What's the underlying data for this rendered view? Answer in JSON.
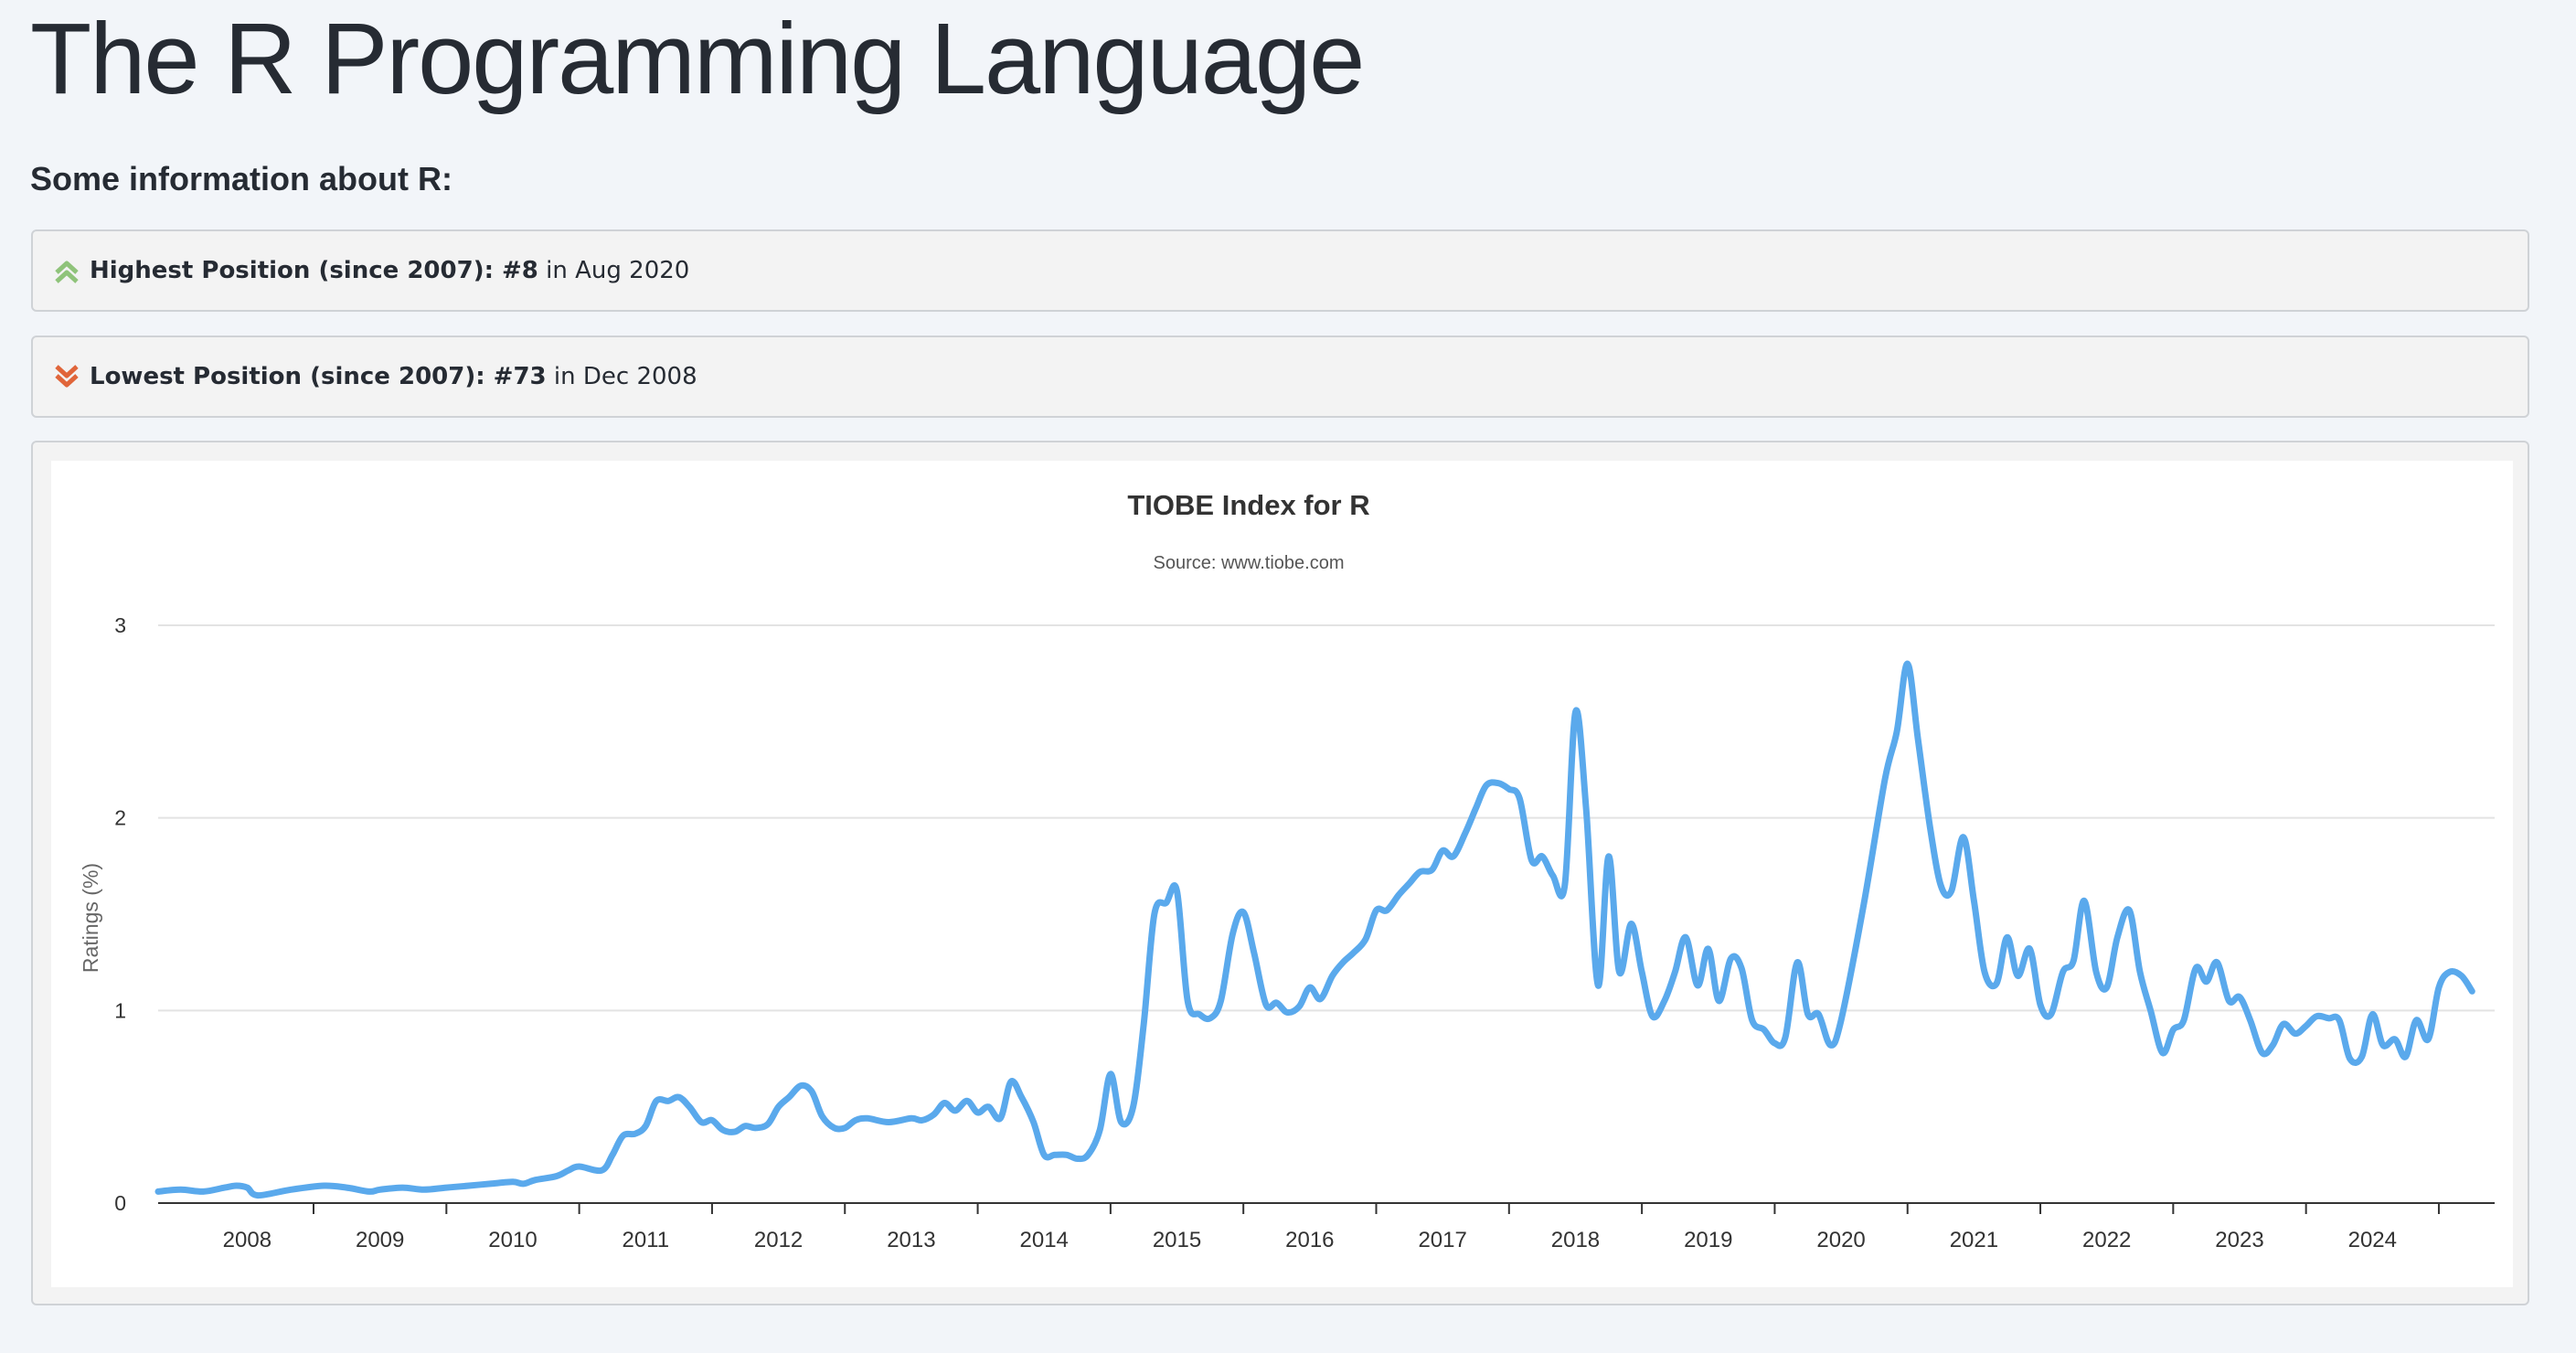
{
  "page": {
    "title": "The R Programming Language"
  },
  "info": {
    "heading": "Some information about R:",
    "highest": {
      "label": "Highest Position (since 2007): #8",
      "suffix": "in Aug 2020"
    },
    "lowest": {
      "label": "Lowest Position (since 2007): #73",
      "suffix": "in Dec 2008"
    }
  },
  "colors": {
    "line": "#5aa9ec",
    "up_icon": "#8fc37a",
    "down_icon": "#e0653a"
  },
  "chart_data": {
    "type": "line",
    "title": "TIOBE Index for R",
    "subtitle": "Source: www.tiobe.com",
    "ylabel": "Ratings (%)",
    "xlabel": "",
    "ylim": [
      0,
      3
    ],
    "xlim": [
      2007.33,
      2024.92
    ],
    "yticks": [
      0,
      1,
      2,
      3
    ],
    "xticks": [
      "2008",
      "2009",
      "2010",
      "2011",
      "2012",
      "2013",
      "2014",
      "2015",
      "2016",
      "2017",
      "2018",
      "2019",
      "2020",
      "2021",
      "2022",
      "2023",
      "2024"
    ],
    "grid": true,
    "legend": "none",
    "series": [
      {
        "points": [
          [
            2007.33,
            0.06
          ],
          [
            2007.5,
            0.07
          ],
          [
            2007.67,
            0.06
          ],
          [
            2007.83,
            0.08
          ],
          [
            2007.92,
            0.09
          ],
          [
            2008.0,
            0.08
          ],
          [
            2008.08,
            0.04
          ],
          [
            2008.33,
            0.07
          ],
          [
            2008.58,
            0.09
          ],
          [
            2008.75,
            0.08
          ],
          [
            2008.92,
            0.06
          ],
          [
            2009.0,
            0.07
          ],
          [
            2009.17,
            0.08
          ],
          [
            2009.33,
            0.07
          ],
          [
            2009.5,
            0.08
          ],
          [
            2009.67,
            0.09
          ],
          [
            2009.83,
            0.1
          ],
          [
            2010.0,
            0.11
          ],
          [
            2010.08,
            0.1
          ],
          [
            2010.17,
            0.12
          ],
          [
            2010.33,
            0.14
          ],
          [
            2010.42,
            0.17
          ],
          [
            2010.5,
            0.19
          ],
          [
            2010.67,
            0.17
          ],
          [
            2010.75,
            0.25
          ],
          [
            2010.83,
            0.35
          ],
          [
            2010.92,
            0.36
          ],
          [
            2011.0,
            0.4
          ],
          [
            2011.08,
            0.53
          ],
          [
            2011.17,
            0.53
          ],
          [
            2011.25,
            0.55
          ],
          [
            2011.33,
            0.5
          ],
          [
            2011.42,
            0.42
          ],
          [
            2011.5,
            0.43
          ],
          [
            2011.58,
            0.38
          ],
          [
            2011.67,
            0.37
          ],
          [
            2011.75,
            0.4
          ],
          [
            2011.83,
            0.39
          ],
          [
            2011.92,
            0.41
          ],
          [
            2012.0,
            0.5
          ],
          [
            2012.08,
            0.55
          ],
          [
            2012.17,
            0.61
          ],
          [
            2012.25,
            0.58
          ],
          [
            2012.33,
            0.45
          ],
          [
            2012.42,
            0.39
          ],
          [
            2012.5,
            0.39
          ],
          [
            2012.58,
            0.43
          ],
          [
            2012.67,
            0.44
          ],
          [
            2012.83,
            0.42
          ],
          [
            2013.0,
            0.44
          ],
          [
            2013.08,
            0.43
          ],
          [
            2013.17,
            0.46
          ],
          [
            2013.25,
            0.52
          ],
          [
            2013.33,
            0.48
          ],
          [
            2013.42,
            0.53
          ],
          [
            2013.5,
            0.47
          ],
          [
            2013.58,
            0.5
          ],
          [
            2013.67,
            0.44
          ],
          [
            2013.75,
            0.63
          ],
          [
            2013.83,
            0.55
          ],
          [
            2013.92,
            0.42
          ],
          [
            2014.0,
            0.25
          ],
          [
            2014.08,
            0.25
          ],
          [
            2014.17,
            0.25
          ],
          [
            2014.25,
            0.23
          ],
          [
            2014.33,
            0.25
          ],
          [
            2014.42,
            0.38
          ],
          [
            2014.5,
            0.67
          ],
          [
            2014.58,
            0.42
          ],
          [
            2014.67,
            0.5
          ],
          [
            2014.75,
            0.93
          ],
          [
            2014.83,
            1.5
          ],
          [
            2014.92,
            1.56
          ],
          [
            2015.0,
            1.62
          ],
          [
            2015.08,
            1.05
          ],
          [
            2015.17,
            0.98
          ],
          [
            2015.25,
            0.96
          ],
          [
            2015.33,
            1.05
          ],
          [
            2015.42,
            1.4
          ],
          [
            2015.5,
            1.51
          ],
          [
            2015.58,
            1.3
          ],
          [
            2015.67,
            1.03
          ],
          [
            2015.75,
            1.04
          ],
          [
            2015.83,
            0.99
          ],
          [
            2015.92,
            1.02
          ],
          [
            2016.0,
            1.12
          ],
          [
            2016.08,
            1.06
          ],
          [
            2016.17,
            1.18
          ],
          [
            2016.25,
            1.25
          ],
          [
            2016.33,
            1.3
          ],
          [
            2016.42,
            1.37
          ],
          [
            2016.5,
            1.52
          ],
          [
            2016.58,
            1.52
          ],
          [
            2016.67,
            1.6
          ],
          [
            2016.75,
            1.66
          ],
          [
            2016.83,
            1.72
          ],
          [
            2016.92,
            1.73
          ],
          [
            2017.0,
            1.83
          ],
          [
            2017.08,
            1.8
          ],
          [
            2017.17,
            1.92
          ],
          [
            2017.25,
            2.05
          ],
          [
            2017.33,
            2.17
          ],
          [
            2017.42,
            2.18
          ],
          [
            2017.5,
            2.15
          ],
          [
            2017.58,
            2.1
          ],
          [
            2017.67,
            1.78
          ],
          [
            2017.75,
            1.8
          ],
          [
            2017.83,
            1.7
          ],
          [
            2017.92,
            1.65
          ],
          [
            2018.0,
            2.55
          ],
          [
            2018.08,
            2.05
          ],
          [
            2018.17,
            1.13
          ],
          [
            2018.25,
            1.8
          ],
          [
            2018.33,
            1.2
          ],
          [
            2018.42,
            1.45
          ],
          [
            2018.5,
            1.2
          ],
          [
            2018.58,
            0.97
          ],
          [
            2018.67,
            1.05
          ],
          [
            2018.75,
            1.2
          ],
          [
            2018.83,
            1.38
          ],
          [
            2018.92,
            1.13
          ],
          [
            2019.0,
            1.32
          ],
          [
            2019.08,
            1.05
          ],
          [
            2019.17,
            1.27
          ],
          [
            2019.25,
            1.22
          ],
          [
            2019.33,
            0.95
          ],
          [
            2019.42,
            0.9
          ],
          [
            2019.5,
            0.83
          ],
          [
            2019.58,
            0.86
          ],
          [
            2019.67,
            1.25
          ],
          [
            2019.75,
            0.98
          ],
          [
            2019.83,
            0.98
          ],
          [
            2019.92,
            0.82
          ],
          [
            2020.0,
            0.95
          ],
          [
            2020.17,
            1.55
          ],
          [
            2020.33,
            2.2
          ],
          [
            2020.42,
            2.45
          ],
          [
            2020.5,
            2.8
          ],
          [
            2020.58,
            2.4
          ],
          [
            2020.67,
            1.95
          ],
          [
            2020.75,
            1.65
          ],
          [
            2020.83,
            1.62
          ],
          [
            2020.92,
            1.9
          ],
          [
            2021.0,
            1.57
          ],
          [
            2021.08,
            1.2
          ],
          [
            2021.17,
            1.14
          ],
          [
            2021.25,
            1.38
          ],
          [
            2021.33,
            1.18
          ],
          [
            2021.42,
            1.32
          ],
          [
            2021.5,
            1.03
          ],
          [
            2021.58,
            0.98
          ],
          [
            2021.67,
            1.2
          ],
          [
            2021.75,
            1.26
          ],
          [
            2021.83,
            1.57
          ],
          [
            2021.92,
            1.2
          ],
          [
            2022.0,
            1.12
          ],
          [
            2022.08,
            1.38
          ],
          [
            2022.17,
            1.52
          ],
          [
            2022.25,
            1.2
          ],
          [
            2022.33,
            1.0
          ],
          [
            2022.42,
            0.78
          ],
          [
            2022.5,
            0.9
          ],
          [
            2022.58,
            0.95
          ],
          [
            2022.67,
            1.22
          ],
          [
            2022.75,
            1.15
          ],
          [
            2022.83,
            1.25
          ],
          [
            2022.92,
            1.05
          ],
          [
            2023.0,
            1.07
          ],
          [
            2023.08,
            0.95
          ],
          [
            2023.17,
            0.78
          ],
          [
            2023.25,
            0.82
          ],
          [
            2023.33,
            0.93
          ],
          [
            2023.42,
            0.88
          ],
          [
            2023.5,
            0.92
          ],
          [
            2023.58,
            0.97
          ],
          [
            2023.67,
            0.96
          ],
          [
            2023.75,
            0.95
          ],
          [
            2023.83,
            0.75
          ],
          [
            2023.92,
            0.76
          ],
          [
            2024.0,
            0.98
          ],
          [
            2024.08,
            0.82
          ],
          [
            2024.17,
            0.85
          ],
          [
            2024.25,
            0.76
          ],
          [
            2024.33,
            0.95
          ],
          [
            2024.42,
            0.85
          ],
          [
            2024.5,
            1.12
          ],
          [
            2024.58,
            1.2
          ],
          [
            2024.67,
            1.18
          ],
          [
            2024.75,
            1.1
          ]
        ]
      }
    ]
  }
}
